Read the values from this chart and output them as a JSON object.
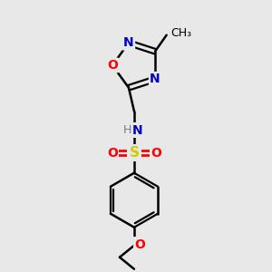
{
  "background_color": "#e8e8e8",
  "bond_color": "#000000",
  "atom_colors": {
    "N": "#0000cc",
    "O": "#ff0000",
    "S": "#cccc00",
    "H": "#708090",
    "C": "#000000"
  },
  "figsize": [
    3.0,
    3.0
  ],
  "dpi": 100
}
